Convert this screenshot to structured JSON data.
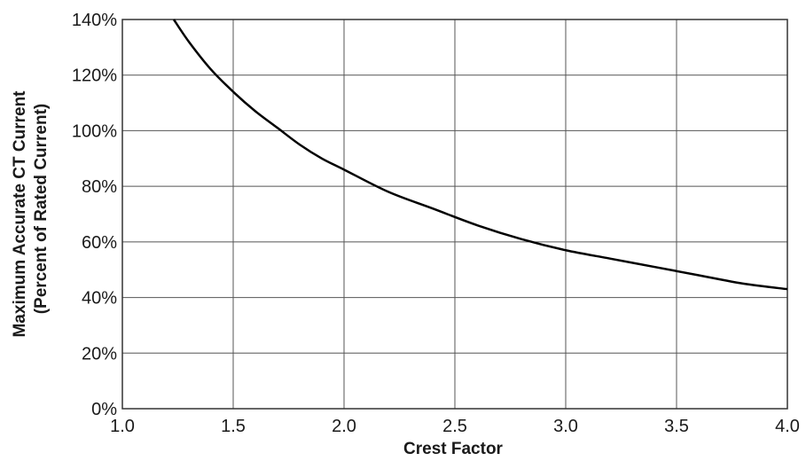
{
  "chart_data": {
    "type": "line",
    "title": "",
    "xlabel": "Crest Factor",
    "ylabel_lines": [
      "Maximum Accurate CT Current",
      "(Percent of Rated Current)"
    ],
    "xlim": [
      1.0,
      4.0
    ],
    "ylim": [
      0,
      140
    ],
    "x_ticks": [
      "1.0",
      "1.5",
      "2.0",
      "2.5",
      "3.0",
      "3.5",
      "4.0"
    ],
    "y_ticks": [
      "0%",
      "20%",
      "40%",
      "60%",
      "80%",
      "100%",
      "120%",
      "140%"
    ],
    "grid": true,
    "legend": "none",
    "series": [
      {
        "x": [
          1.232,
          1.3,
          1.4,
          1.5,
          1.6,
          1.7,
          1.8,
          1.9,
          2.0,
          2.2,
          2.4,
          2.6,
          2.8,
          3.0,
          3.2,
          3.4,
          3.6,
          3.8,
          4.0
        ],
        "y": [
          140,
          132,
          122,
          114,
          107,
          101,
          95,
          90,
          86,
          78,
          72,
          66,
          61,
          57,
          54,
          51,
          48,
          45,
          43
        ]
      }
    ],
    "colors": {
      "line": "#000000",
      "grid": "#555555",
      "frame": "#333333"
    }
  }
}
